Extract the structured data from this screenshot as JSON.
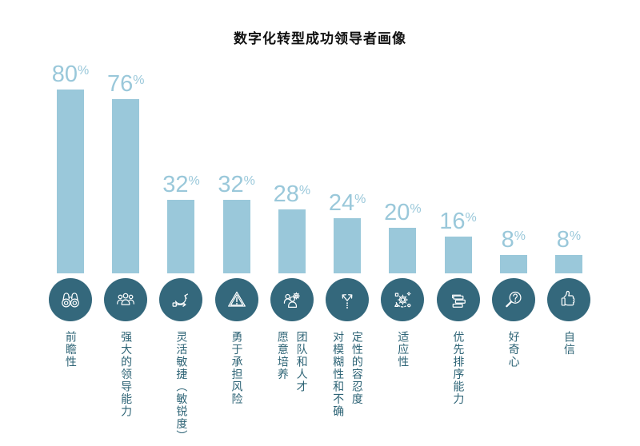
{
  "chart_data": {
    "type": "bar",
    "title": "数字化转型成功领导者画像",
    "unit": "%",
    "categories": [
      "前瞻性",
      "强大的领导能力",
      "灵活敏捷（敏锐度）",
      "勇于承担风险",
      "团队和人才\n愿意培养",
      "定性的容忍度\n对模糊性和不确",
      "适应性",
      "优先排序能力",
      "好奇心",
      "自信"
    ],
    "values": [
      80,
      76,
      32,
      32,
      28,
      24,
      20,
      16,
      8,
      8
    ],
    "icons": [
      "binoculars-icon",
      "team-icon",
      "agility-cycle-icon",
      "warning-triangle-icon",
      "talent-development-icon",
      "branching-arrows-icon",
      "adaptability-gear-icon",
      "priority-list-icon",
      "magnifier-question-icon",
      "thumbs-up-icon"
    ],
    "ylim": [
      0,
      100
    ],
    "grid": false,
    "legend_position": "none",
    "colors": {
      "bar": "#9ac8da",
      "value_label": "#9ac8da",
      "icon_circle": "#34687c",
      "category_text": "#2e6476",
      "title": "#111111"
    }
  }
}
